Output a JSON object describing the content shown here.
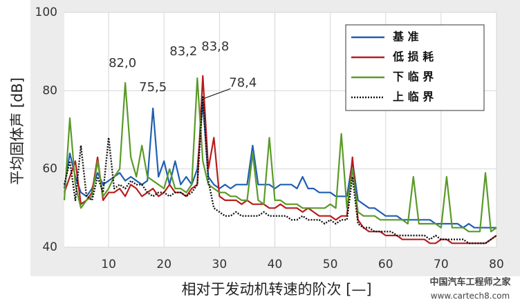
{
  "chart_data": {
    "type": "line",
    "x_label": "相对于发动机转速的阶次  [—]",
    "y_label": "平均固体声  [dB]",
    "x": [
      2,
      3,
      4,
      5,
      6,
      7,
      8,
      9,
      10,
      11,
      12,
      13,
      14,
      15,
      16,
      17,
      18,
      19,
      20,
      21,
      22,
      23,
      24,
      25,
      26,
      27,
      28,
      29,
      30,
      31,
      32,
      33,
      34,
      35,
      36,
      37,
      38,
      39,
      40,
      41,
      42,
      43,
      44,
      45,
      46,
      47,
      48,
      49,
      50,
      51,
      52,
      53,
      54,
      55,
      56,
      57,
      58,
      59,
      60,
      61,
      62,
      63,
      64,
      65,
      66,
      67,
      68,
      69,
      70,
      71,
      72,
      73,
      74,
      75,
      76,
      77,
      78,
      79,
      80
    ],
    "series": [
      {
        "name": "基 准",
        "color": "#1f5fb0",
        "linestyle": "solid",
        "values": [
          55,
          64,
          58,
          54,
          53,
          55,
          59,
          56,
          57,
          58,
          59,
          57,
          58,
          57,
          56,
          57,
          75.5,
          58,
          62,
          56,
          62,
          56,
          58,
          56,
          60,
          77,
          58,
          56,
          55,
          56,
          55,
          56,
          56,
          56,
          66,
          56,
          56,
          56,
          55,
          56,
          56,
          56,
          55,
          58,
          55,
          55,
          54,
          54,
          54,
          53,
          53,
          53,
          62,
          52,
          51,
          50,
          50,
          49,
          48,
          48,
          48,
          47,
          47,
          47,
          47,
          47,
          47,
          46,
          46,
          46,
          46,
          46,
          45,
          46,
          45,
          45,
          45,
          45,
          45
        ]
      },
      {
        "name": "低 损 耗",
        "color": "#b81c1c",
        "linestyle": "solid",
        "values": [
          54,
          58,
          62,
          51,
          52,
          54,
          63,
          52,
          54,
          54,
          55,
          53,
          56,
          55,
          53,
          54,
          55,
          53,
          54,
          56,
          54,
          54,
          53,
          55,
          56,
          83.8,
          60,
          68,
          53,
          52,
          52,
          52,
          51,
          52,
          51,
          51,
          51,
          50,
          50,
          51,
          50,
          50,
          50,
          49,
          50,
          49,
          48,
          48,
          48,
          47,
          48,
          48,
          63,
          47,
          45,
          44,
          44,
          44,
          43,
          43,
          43,
          42,
          42,
          42,
          42,
          42,
          41,
          41,
          42,
          42,
          41,
          41,
          41,
          41,
          41,
          41,
          41,
          42,
          43
        ]
      },
      {
        "name": "下 临 界",
        "color": "#5a9a28",
        "linestyle": "solid",
        "values": [
          52,
          73,
          56,
          50,
          52,
          53,
          62,
          53,
          55,
          58,
          60,
          82,
          63,
          58,
          66,
          58,
          57,
          56,
          55,
          60,
          55,
          55,
          54,
          56,
          83.2,
          62,
          56,
          55,
          54,
          54,
          53,
          53,
          52,
          52,
          64,
          52,
          51,
          68,
          52,
          52,
          51,
          51,
          51,
          50,
          50,
          50,
          50,
          50,
          51,
          50,
          69,
          50,
          60,
          49,
          48,
          48,
          48,
          47,
          47,
          47,
          47,
          47,
          46,
          58,
          46,
          46,
          46,
          46,
          45,
          58,
          45,
          45,
          45,
          44,
          44,
          44,
          59,
          44,
          45
        ]
      },
      {
        "name": "上 临 界",
        "color": "#111111",
        "linestyle": "dotted",
        "values": [
          56,
          62,
          52,
          66,
          53,
          52,
          58,
          54,
          68,
          55,
          56,
          55,
          57,
          56,
          56,
          54,
          53,
          54,
          54,
          53,
          54,
          54,
          53,
          54,
          56,
          78.4,
          57,
          50,
          49,
          48,
          48,
          49,
          48,
          48,
          48,
          48,
          49,
          48,
          48,
          48,
          48,
          47,
          47,
          48,
          47,
          47,
          47,
          46,
          47,
          46,
          47,
          47,
          58,
          46,
          45,
          45,
          44,
          44,
          44,
          44,
          43,
          43,
          43,
          43,
          43,
          43,
          42,
          43,
          42,
          42,
          42,
          42,
          42,
          41,
          41,
          41,
          41,
          42,
          43
        ]
      }
    ],
    "annotations": [
      {
        "text": "82,0",
        "x": 13,
        "y": 82
      },
      {
        "text": "75,5",
        "x": 18,
        "y": 75.5
      },
      {
        "text": "83,2",
        "x": 26,
        "y": 83.2
      },
      {
        "text": "83,8",
        "x": 27,
        "y": 83.8
      },
      {
        "text": "78,4",
        "x": 27,
        "y": 78.4
      }
    ],
    "xlim": [
      2,
      80
    ],
    "ylim": [
      40,
      100
    ],
    "xticks": [
      10,
      20,
      30,
      40,
      50,
      60,
      70,
      80
    ],
    "yticks": [
      40,
      60,
      80,
      100
    ],
    "grid": true,
    "legend": "upper right"
  },
  "watermark": [
    "中国汽车工程师之家",
    "www.cartech8.com"
  ]
}
